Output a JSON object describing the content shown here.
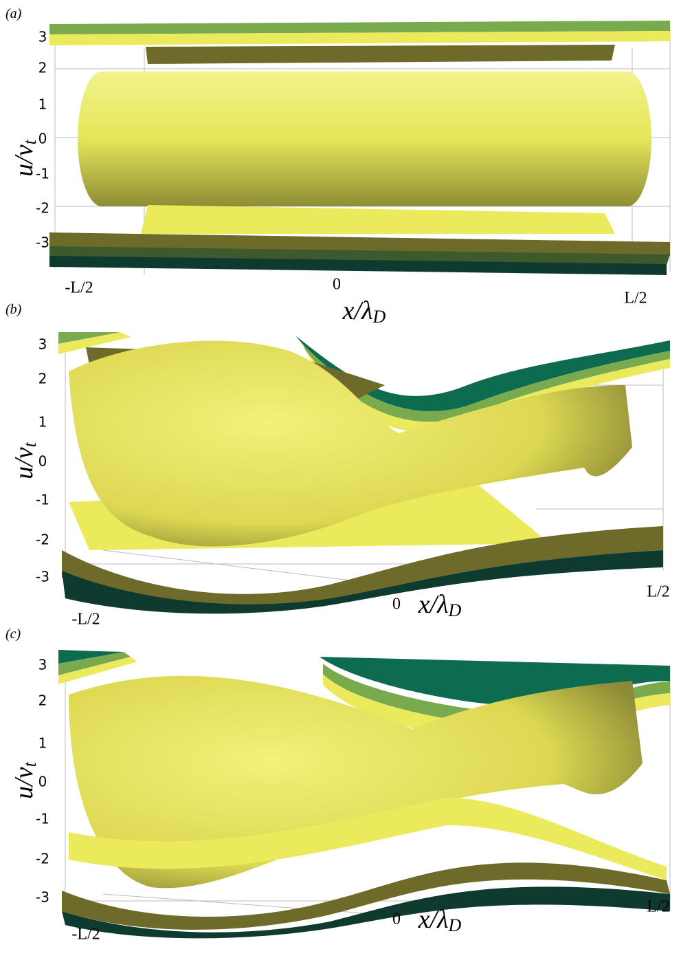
{
  "figure": {
    "panels": [
      {
        "label": "(a)",
        "y_label": {
          "main": "u/v",
          "sub": "t"
        },
        "x_label": {
          "main": "x/λ",
          "sub": "D"
        },
        "y_ticks": [
          3,
          2,
          1,
          0,
          -1,
          -2,
          -3
        ],
        "x_ticks": [
          "-L/2",
          "0",
          "L/2"
        ]
      },
      {
        "label": "(b)",
        "y_label": {
          "main": "u/v",
          "sub": "t"
        },
        "x_label": {
          "main": "x/λ",
          "sub": "D"
        },
        "y_ticks": [
          3,
          2,
          1,
          0,
          -1,
          -2,
          -3
        ],
        "x_ticks": [
          "-L/2",
          "0",
          "L/2"
        ]
      },
      {
        "label": "(c)",
        "y_label": {
          "main": "u/v",
          "sub": "t"
        },
        "x_label": {
          "main": "x/λ",
          "sub": "D"
        },
        "y_ticks": [
          3,
          2,
          1,
          0,
          -1,
          -2,
          -3
        ],
        "x_ticks": [
          "-L/2",
          "0",
          "L/2"
        ]
      }
    ]
  }
}
